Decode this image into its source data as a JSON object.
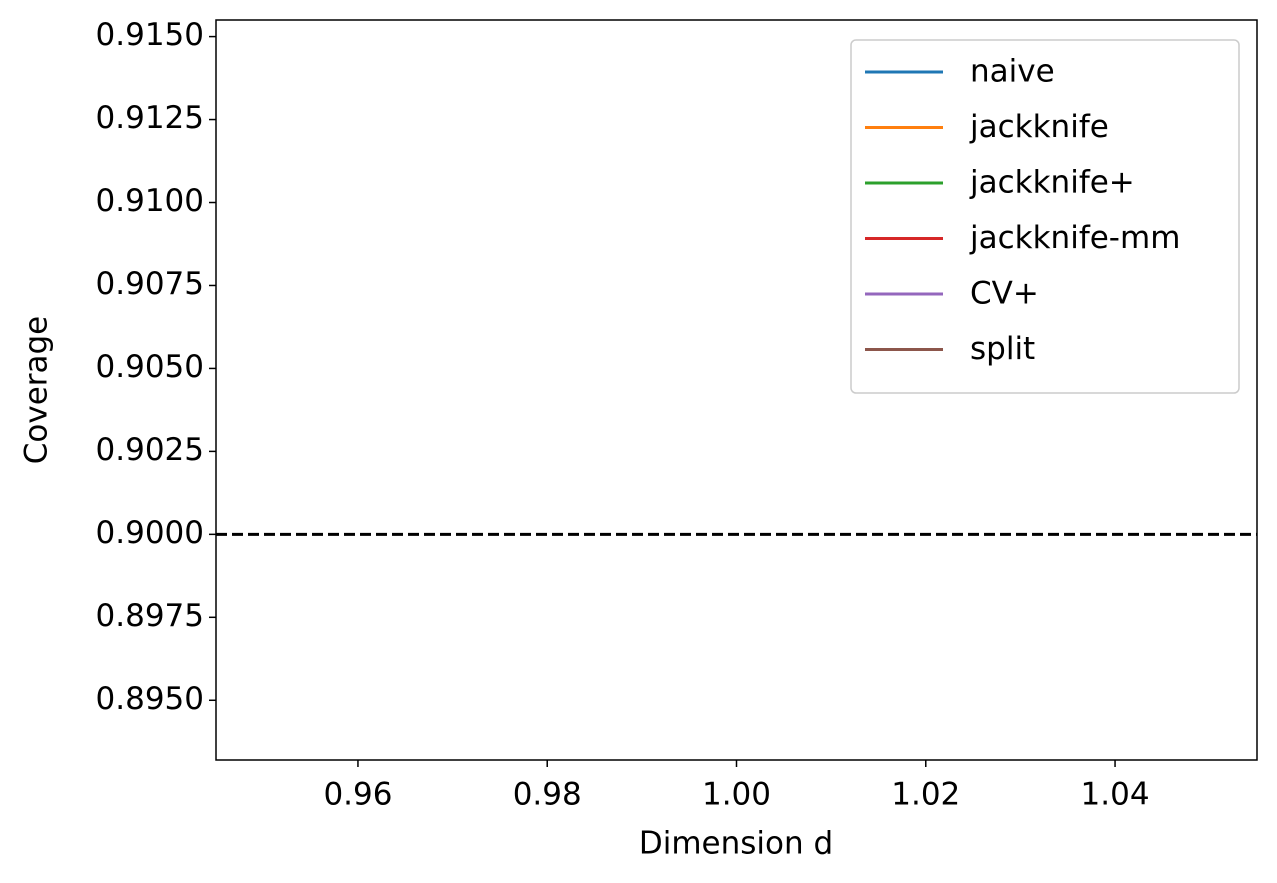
{
  "chart_data": {
    "type": "line",
    "xlabel": "Dimension d",
    "ylabel": "Coverage",
    "x": [
      1
    ],
    "series": [
      {
        "name": "naive",
        "color": "#1f77b4",
        "values": [
          null
        ]
      },
      {
        "name": "jackknife",
        "color": "#ff7f0e",
        "values": [
          null
        ]
      },
      {
        "name": "jackknife+",
        "color": "#2ca02c",
        "values": [
          null
        ]
      },
      {
        "name": "jackknife-mm",
        "color": "#d62728",
        "values": [
          null
        ]
      },
      {
        "name": "CV+",
        "color": "#9467bd",
        "values": [
          null
        ]
      },
      {
        "name": "split",
        "color": "#8c564b",
        "values": [
          null
        ]
      }
    ],
    "reference_line": {
      "value": 0.9,
      "color": "#000000",
      "style": "dashed"
    },
    "xlim": [
      0.945,
      1.055
    ],
    "xticks": [
      0.96,
      0.98,
      {
        "value": 1,
        "label": "1.00"
      },
      1.02,
      1.04
    ],
    "ylim": [
      0.8932,
      0.9155
    ],
    "yticks": [
      {
        "value": 0.895,
        "label": "0.8950"
      },
      {
        "value": 0.8975,
        "label": "0.8975"
      },
      {
        "value": 0.9,
        "label": "0.9000"
      },
      {
        "value": 0.9025,
        "label": "0.9025"
      },
      {
        "value": 0.905,
        "label": "0.9050"
      },
      {
        "value": 0.9075,
        "label": "0.9075"
      },
      {
        "value": 0.91,
        "label": "0.9100"
      },
      {
        "value": 0.9125,
        "label": "0.9125"
      },
      {
        "value": 0.915,
        "label": "0.9150"
      }
    ],
    "legend": "upper right",
    "grid": false
  }
}
